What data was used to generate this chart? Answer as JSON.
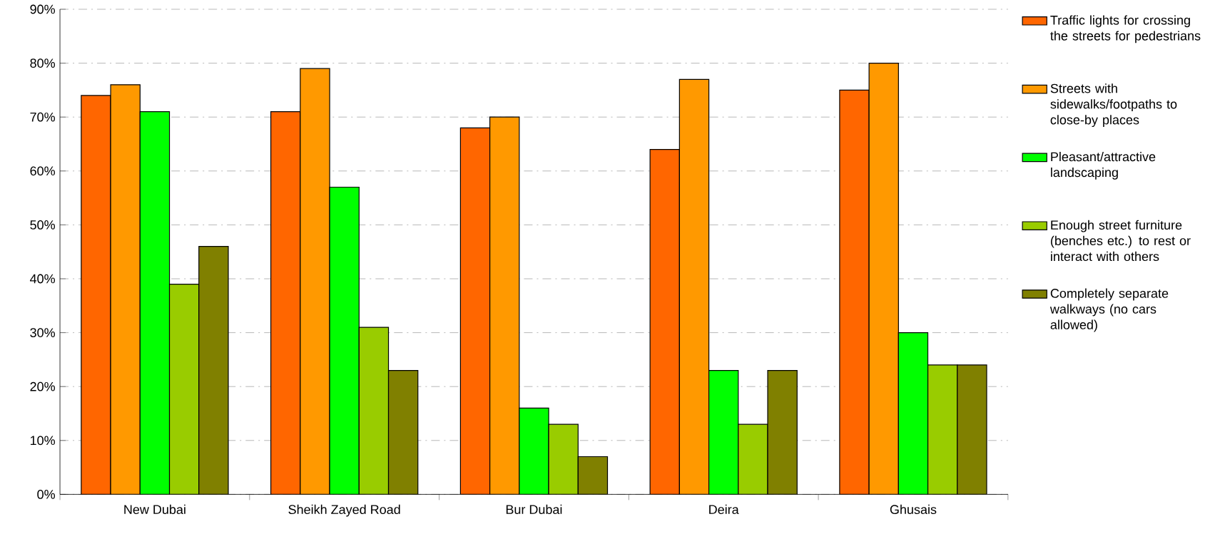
{
  "chart_data": {
    "type": "bar",
    "categories": [
      "New Dubai",
      "Sheikh Zayed Road",
      "Bur Dubai",
      "Deira",
      "Ghusais"
    ],
    "series": [
      {
        "name": "Traffic lights for crossing the streets for pedestrians",
        "color": "#ff6600",
        "values": [
          74,
          71,
          68,
          64,
          75
        ]
      },
      {
        "name": "Streets with sidewalks/footpaths to close-by places",
        "color": "#ff9900",
        "values": [
          76,
          79,
          70,
          77,
          80
        ]
      },
      {
        "name": "Pleasant/attractive landscaping",
        "color": "#00ff00",
        "values": [
          71,
          57,
          16,
          23,
          30
        ]
      },
      {
        "name": "Enough street furniture (benches etc.) to rest or interact with others",
        "color": "#99cc00",
        "values": [
          39,
          31,
          13,
          13,
          24
        ]
      },
      {
        "name": "Completely separate walkways (no cars allowed)",
        "color": "#808000",
        "values": [
          46,
          23,
          7,
          23,
          24
        ]
      }
    ],
    "ylim": [
      0,
      90
    ],
    "yticks": [
      {
        "value": 0,
        "label": "0%"
      },
      {
        "value": 10,
        "label": "10%"
      },
      {
        "value": 20,
        "label": "20%"
      },
      {
        "value": 30,
        "label": "30%"
      },
      {
        "value": 40,
        "label": "40%"
      },
      {
        "value": 50,
        "label": "50%"
      },
      {
        "value": 60,
        "label": "60%"
      },
      {
        "value": 70,
        "label": "70%"
      },
      {
        "value": 80,
        "label": "80%"
      },
      {
        "value": 90,
        "label": "90%"
      }
    ],
    "grid": "y",
    "legend": "right"
  }
}
